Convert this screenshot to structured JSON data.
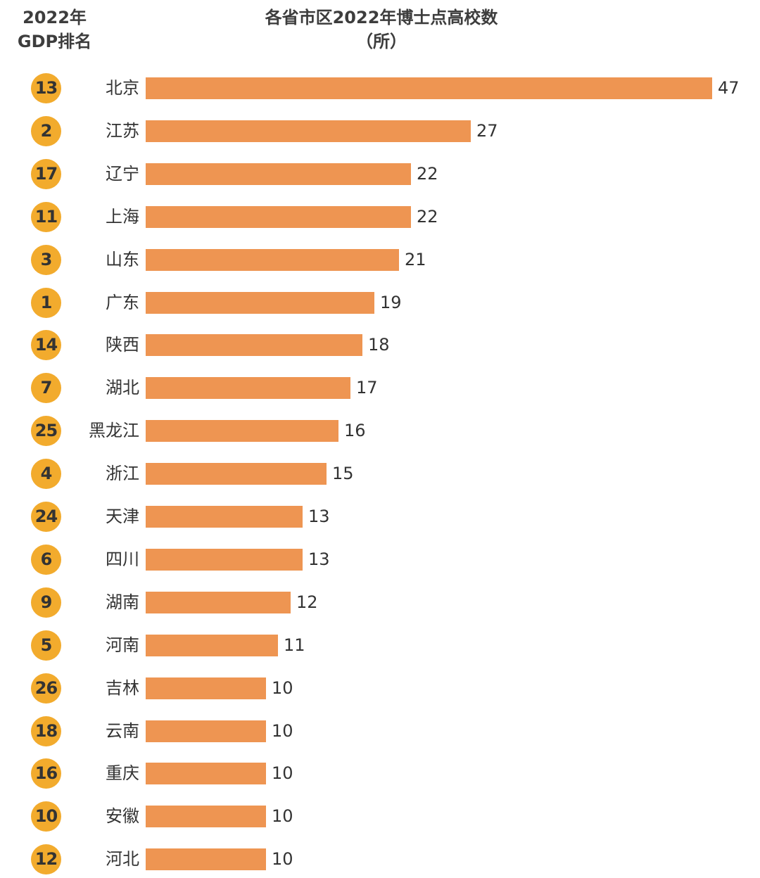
{
  "header": {
    "rank_title_line1": "2022年",
    "rank_title_line2": "GDP排名",
    "chart_title_line1": "各省市区2022年博士点高校数",
    "chart_title_line2": "（所）"
  },
  "colors": {
    "bar": "#ee9552",
    "badge": "#f2ab2d"
  },
  "chart_data": {
    "type": "bar",
    "orientation": "horizontal",
    "title": "各省市区2022年博士点高校数",
    "unit": "（所）",
    "categories": [
      "北京",
      "江苏",
      "辽宁",
      "上海",
      "山东",
      "广东",
      "陕西",
      "湖北",
      "黑龙江",
      "浙江",
      "天津",
      "四川",
      "湖南",
      "河南",
      "吉林",
      "云南",
      "重庆",
      "安徽",
      "河北"
    ],
    "values": [
      47,
      27,
      22,
      22,
      21,
      19,
      18,
      17,
      16,
      15,
      13,
      13,
      12,
      11,
      10,
      10,
      10,
      10,
      10
    ],
    "gdp_rank_2022": [
      "13",
      "2",
      "17",
      "11",
      "3",
      "1",
      "14",
      "7",
      "25",
      "4",
      "24",
      "6",
      "9",
      "5",
      "26",
      "18",
      "16",
      "10",
      "12"
    ],
    "xlim": [
      0,
      47
    ]
  }
}
